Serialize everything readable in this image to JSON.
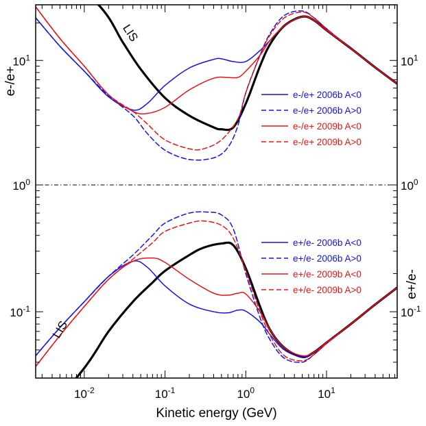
{
  "chart_data": {
    "type": "line",
    "xlabel": "Kinetic energy (GeV)",
    "xscale": "log",
    "xlim": [
      0.0025,
      75
    ],
    "x_ticks": [
      {
        "value": 0.01,
        "base": "10",
        "exp": "-2"
      },
      {
        "value": 0.1,
        "base": "10",
        "exp": "-1"
      },
      {
        "value": 1,
        "base": "10",
        "exp": "0"
      },
      {
        "value": 10,
        "base": "10",
        "exp": "1"
      }
    ],
    "panels": [
      {
        "id": "upper",
        "ylabel_left": "e-/e+",
        "ylabel_right": "",
        "yscale": "log",
        "ylim": [
          1,
          28
        ],
        "y_ticks": [
          {
            "value": 1,
            "base": "10",
            "exp": "0"
          },
          {
            "value": 10,
            "base": "10",
            "exp": "1"
          }
        ],
        "reference_line": {
          "y": 1,
          "style": "dash-dot"
        },
        "annotation": {
          "text": "LIS",
          "x": 0.034,
          "y": 16
        },
        "legend_position": "right",
        "series": [
          {
            "name": "LIS",
            "label": "",
            "color": "#000000",
            "dash": "solid",
            "width": 3.2,
            "points": [
              [
                0.0025,
                80
              ],
              [
                0.015,
                28
              ],
              [
                0.03,
                14
              ],
              [
                0.05,
                8.5
              ],
              [
                0.1,
                5
              ],
              [
                0.2,
                3.6
              ],
              [
                0.4,
                2.9
              ],
              [
                0.5,
                2.8
              ],
              [
                0.7,
                2.9
              ],
              [
                1,
                4.5
              ],
              [
                1.5,
                9
              ],
              [
                2,
                13.5
              ],
              [
                3,
                19
              ],
              [
                5,
                22.5
              ],
              [
                7,
                21
              ],
              [
                10,
                17.5
              ],
              [
                20,
                12.5
              ],
              [
                40,
                8.8
              ],
              [
                75,
                6.5
              ]
            ]
          },
          {
            "name": "e-/e+ 2006b A<0",
            "label": "e-/e+ 2006b A<0",
            "color": "#1010ee",
            "dash": "solid",
            "width": 1.5,
            "points": [
              [
                0.0025,
                22
              ],
              [
                0.005,
                13
              ],
              [
                0.01,
                8.2
              ],
              [
                0.02,
                5.1
              ],
              [
                0.04,
                4
              ],
              [
                0.06,
                4.5
              ],
              [
                0.1,
                6.3
              ],
              [
                0.2,
                8.7
              ],
              [
                0.4,
                10.2
              ],
              [
                0.5,
                10.3
              ],
              [
                0.7,
                9.8
              ],
              [
                1,
                9.8
              ],
              [
                1.5,
                12
              ],
              [
                2,
                14.5
              ],
              [
                3,
                19
              ],
              [
                5,
                22.5
              ],
              [
                7,
                21
              ],
              [
                10,
                17.5
              ],
              [
                20,
                12.5
              ],
              [
                40,
                8.8
              ],
              [
                75,
                6.5
              ]
            ]
          },
          {
            "name": "e-/e+ 2006b A>0",
            "label": "e-/e+ 2006b A>0",
            "color": "#1010ee",
            "dash": "dashed",
            "width": 1.5,
            "points": [
              [
                0.0025,
                22
              ],
              [
                0.005,
                13
              ],
              [
                0.01,
                8.2
              ],
              [
                0.02,
                5.2
              ],
              [
                0.04,
                3.6
              ],
              [
                0.06,
                2.6
              ],
              [
                0.1,
                1.9
              ],
              [
                0.2,
                1.6
              ],
              [
                0.4,
                1.65
              ],
              [
                0.6,
                2
              ],
              [
                0.8,
                3
              ],
              [
                1,
                5.5
              ],
              [
                1.5,
                11
              ],
              [
                2,
                16.5
              ],
              [
                3,
                23
              ],
              [
                5,
                25
              ],
              [
                7,
                22
              ],
              [
                10,
                18
              ],
              [
                20,
                12.5
              ],
              [
                40,
                8.8
              ],
              [
                75,
                6.5
              ]
            ]
          },
          {
            "name": "e-/e+ 2009b A<0",
            "label": "e-/e+ 2009b A<0",
            "color": "#ee1010",
            "dash": "solid",
            "width": 1.5,
            "points": [
              [
                0.0025,
                27
              ],
              [
                0.005,
                15
              ],
              [
                0.01,
                9
              ],
              [
                0.02,
                5.3
              ],
              [
                0.04,
                3.9
              ],
              [
                0.06,
                3.75
              ],
              [
                0.1,
                4.2
              ],
              [
                0.2,
                5.8
              ],
              [
                0.4,
                7.2
              ],
              [
                0.6,
                7.3
              ],
              [
                0.8,
                7.3
              ],
              [
                1,
                8.2
              ],
              [
                1.5,
                11
              ],
              [
                2,
                14.5
              ],
              [
                3,
                19
              ],
              [
                5,
                22.5
              ],
              [
                7,
                21
              ],
              [
                10,
                17.5
              ],
              [
                20,
                12.5
              ],
              [
                40,
                8.8
              ],
              [
                75,
                6.5
              ]
            ]
          },
          {
            "name": "e-/e+ 2009b A>0",
            "label": "e-/e+ 2009b A>0",
            "color": "#ee1010",
            "dash": "dashed",
            "width": 1.5,
            "points": [
              [
                0.0025,
                27
              ],
              [
                0.005,
                15
              ],
              [
                0.01,
                9
              ],
              [
                0.02,
                5.3
              ],
              [
                0.04,
                3.9
              ],
              [
                0.06,
                3.1
              ],
              [
                0.1,
                2.3
              ],
              [
                0.2,
                1.95
              ],
              [
                0.3,
                1.95
              ],
              [
                0.5,
                2.3
              ],
              [
                0.8,
                3.4
              ],
              [
                1,
                5.5
              ],
              [
                1.5,
                11
              ],
              [
                2,
                16
              ],
              [
                3,
                22
              ],
              [
                5,
                24.5
              ],
              [
                7,
                22
              ],
              [
                10,
                18
              ],
              [
                20,
                12.5
              ],
              [
                40,
                8.8
              ],
              [
                75,
                6.5
              ]
            ]
          }
        ]
      },
      {
        "id": "lower",
        "ylabel_left": "",
        "ylabel_right": "e+/e-",
        "yscale": "log",
        "ylim": [
          0.03,
          1
        ],
        "y_ticks": [
          {
            "value": 0.1,
            "base": "10",
            "exp": "-1"
          }
        ],
        "annotation": {
          "text": "LIS",
          "x": 0.0055,
          "y": 0.07
        },
        "legend_position": "right",
        "series": [
          {
            "name": "LIS",
            "label": "",
            "color": "#000000",
            "dash": "solid",
            "width": 3.2,
            "points": [
              [
                0.0025,
                0.0125
              ],
              [
                0.01,
                0.036
              ],
              [
                0.02,
                0.07
              ],
              [
                0.04,
                0.12
              ],
              [
                0.07,
                0.17
              ],
              [
                0.1,
                0.21
              ],
              [
                0.2,
                0.28
              ],
              [
                0.3,
                0.32
              ],
              [
                0.5,
                0.345
              ],
              [
                0.7,
                0.335
              ],
              [
                1,
                0.22
              ],
              [
                1.5,
                0.11
              ],
              [
                2,
                0.072
              ],
              [
                3,
                0.052
              ],
              [
                5,
                0.044
              ],
              [
                7,
                0.048
              ],
              [
                10,
                0.057
              ],
              [
                20,
                0.08
              ],
              [
                40,
                0.114
              ],
              [
                75,
                0.155
              ]
            ]
          },
          {
            "name": "e+/e- 2006b A<0",
            "label": "e+/e- 2006b A<0",
            "color": "#1010ee",
            "dash": "solid",
            "width": 1.5,
            "points": [
              [
                0.0025,
                0.045
              ],
              [
                0.005,
                0.075
              ],
              [
                0.01,
                0.12
              ],
              [
                0.02,
                0.19
              ],
              [
                0.04,
                0.25
              ],
              [
                0.06,
                0.225
              ],
              [
                0.1,
                0.16
              ],
              [
                0.2,
                0.115
              ],
              [
                0.4,
                0.1
              ],
              [
                0.6,
                0.098
              ],
              [
                0.8,
                0.103
              ],
              [
                1,
                0.101
              ],
              [
                1.5,
                0.083
              ],
              [
                2,
                0.066
              ],
              [
                3,
                0.05
              ],
              [
                5,
                0.044
              ],
              [
                7,
                0.048
              ],
              [
                10,
                0.057
              ],
              [
                20,
                0.08
              ],
              [
                40,
                0.114
              ],
              [
                75,
                0.155
              ]
            ]
          },
          {
            "name": "e+/e- 2006b A>0",
            "label": "e+/e- 2006b A>0",
            "color": "#1010ee",
            "dash": "dashed",
            "width": 1.5,
            "points": [
              [
                0.0025,
                0.045
              ],
              [
                0.005,
                0.075
              ],
              [
                0.01,
                0.12
              ],
              [
                0.02,
                0.19
              ],
              [
                0.04,
                0.28
              ],
              [
                0.07,
                0.4
              ],
              [
                0.1,
                0.5
              ],
              [
                0.2,
                0.6
              ],
              [
                0.35,
                0.61
              ],
              [
                0.5,
                0.58
              ],
              [
                0.7,
                0.45
              ],
              [
                1,
                0.2
              ],
              [
                1.5,
                0.09
              ],
              [
                2,
                0.06
              ],
              [
                3,
                0.043
              ],
              [
                5,
                0.04
              ],
              [
                7,
                0.046
              ],
              [
                10,
                0.056
              ],
              [
                20,
                0.08
              ],
              [
                40,
                0.114
              ],
              [
                75,
                0.155
              ]
            ]
          },
          {
            "name": "e+/e- 2009b A<0",
            "label": "e+/e- 2009b A<0",
            "color": "#ee1010",
            "dash": "solid",
            "width": 1.5,
            "points": [
              [
                0.0025,
                0.037
              ],
              [
                0.005,
                0.065
              ],
              [
                0.01,
                0.11
              ],
              [
                0.02,
                0.18
              ],
              [
                0.04,
                0.25
              ],
              [
                0.07,
                0.265
              ],
              [
                0.1,
                0.245
              ],
              [
                0.2,
                0.18
              ],
              [
                0.4,
                0.14
              ],
              [
                0.6,
                0.135
              ],
              [
                0.8,
                0.14
              ],
              [
                1,
                0.138
              ],
              [
                1.5,
                0.1
              ],
              [
                2,
                0.072
              ],
              [
                3,
                0.052
              ],
              [
                5,
                0.045
              ],
              [
                7,
                0.048
              ],
              [
                10,
                0.057
              ],
              [
                20,
                0.08
              ],
              [
                40,
                0.114
              ],
              [
                75,
                0.155
              ]
            ]
          },
          {
            "name": "e+/e- 2009b A>0",
            "label": "e+/e- 2009b A>0",
            "color": "#ee1010",
            "dash": "dashed",
            "width": 1.5,
            "points": [
              [
                0.0025,
                0.037
              ],
              [
                0.005,
                0.065
              ],
              [
                0.01,
                0.11
              ],
              [
                0.02,
                0.18
              ],
              [
                0.04,
                0.26
              ],
              [
                0.07,
                0.35
              ],
              [
                0.1,
                0.43
              ],
              [
                0.2,
                0.5
              ],
              [
                0.3,
                0.52
              ],
              [
                0.5,
                0.48
              ],
              [
                0.7,
                0.38
              ],
              [
                1,
                0.21
              ],
              [
                1.5,
                0.1
              ],
              [
                2,
                0.065
              ],
              [
                3,
                0.045
              ],
              [
                5,
                0.041
              ],
              [
                7,
                0.046
              ],
              [
                10,
                0.056
              ],
              [
                20,
                0.08
              ],
              [
                40,
                0.114
              ],
              [
                75,
                0.155
              ]
            ]
          }
        ]
      }
    ]
  }
}
